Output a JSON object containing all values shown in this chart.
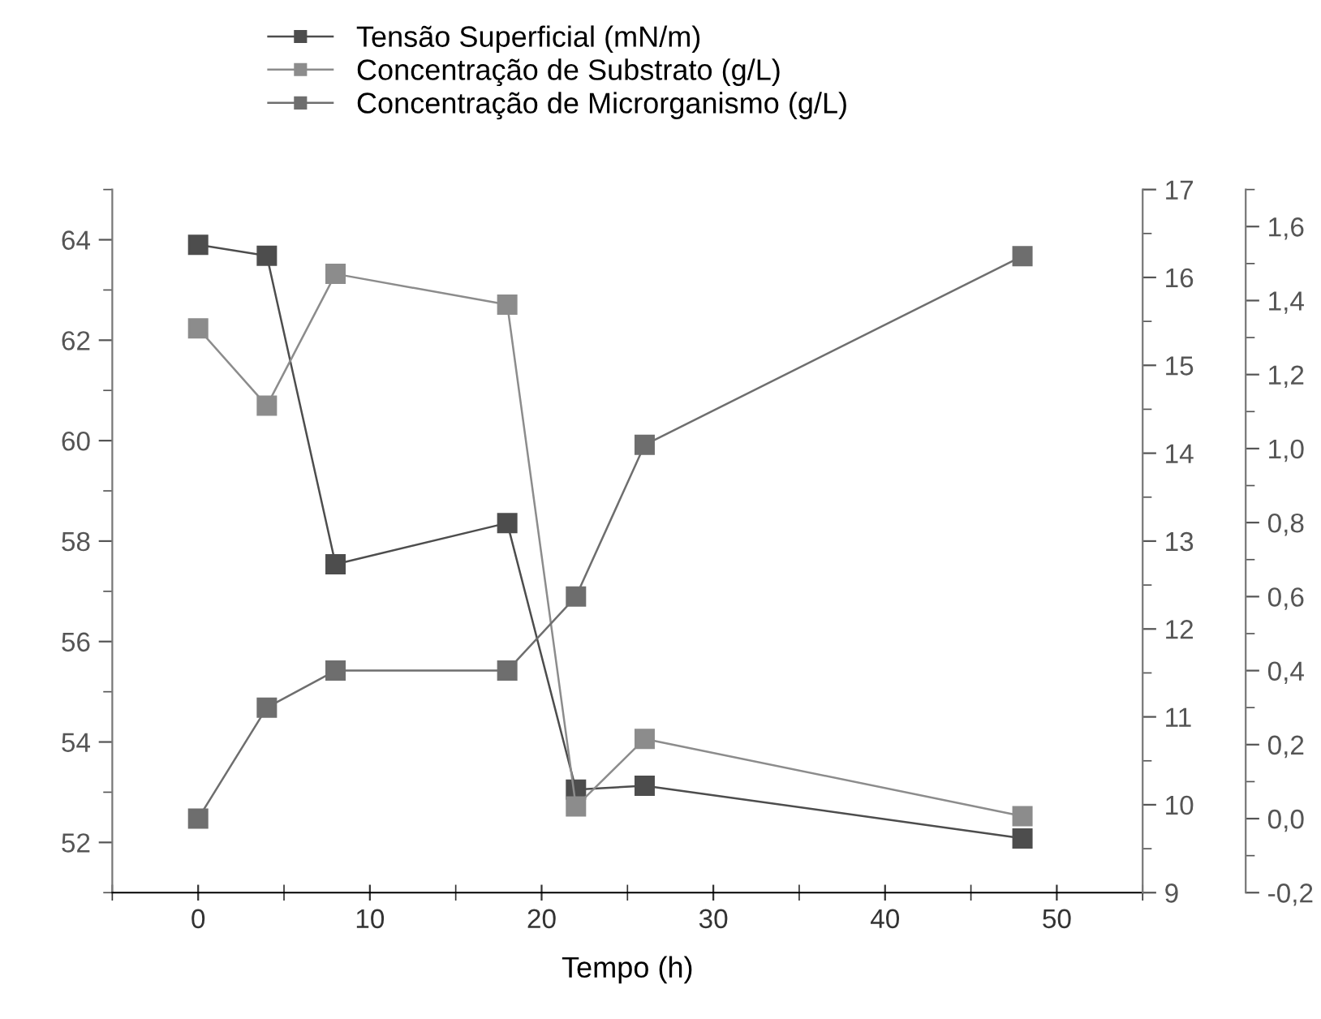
{
  "chart_data": {
    "type": "line",
    "xlabel": "Tempo (h)",
    "x": [
      0,
      4,
      8,
      18,
      22,
      26,
      48
    ],
    "series": [
      {
        "name": "Tensão Superficial (mN/m)",
        "color": "#4d4d4d",
        "values": [
          63.9,
          63.68,
          57.54,
          58.36,
          53.05,
          53.13,
          52.08
        ]
      },
      {
        "name": "Concentração de Substrato (g/L)",
        "color": "#8c8c8c",
        "axis": "y2",
        "values": [
          15.42,
          14.54,
          16.04,
          15.69,
          9.98,
          10.75,
          9.87
        ]
      },
      {
        "name": "Concentração de Microrganismo (g/L)",
        "color": "#6e6e6e",
        "axis": "y3",
        "values": [
          0.0,
          0.3,
          0.4,
          0.4,
          0.6,
          1.01,
          1.52
        ]
      }
    ],
    "xlim": [
      -5,
      55
    ],
    "xticks": [
      0,
      10,
      20,
      30,
      40,
      50
    ],
    "ylim": [
      51,
      65
    ],
    "yticks": [
      52,
      54,
      56,
      58,
      60,
      62,
      64
    ],
    "y2lim": [
      9,
      17
    ],
    "y2ticks": [
      9,
      10,
      11,
      12,
      13,
      14,
      15,
      16,
      17
    ],
    "y3lim": [
      -0.2,
      1.7
    ],
    "y3ticks": [
      {
        "value": -0.2,
        "label": "-0,2"
      },
      {
        "value": 0.0,
        "label": "0,0"
      },
      {
        "value": 0.2,
        "label": "0,2"
      },
      {
        "value": 0.4,
        "label": "0,4"
      },
      {
        "value": 0.6,
        "label": "0,6"
      },
      {
        "value": 0.8,
        "label": "0,8"
      },
      {
        "value": 1.0,
        "label": "1,0"
      },
      {
        "value": 1.2,
        "label": "1,2"
      },
      {
        "value": 1.4,
        "label": "1,4"
      },
      {
        "value": 1.6,
        "label": "1,6"
      }
    ],
    "marker": "square",
    "line_style": "solid",
    "grid": false,
    "legend": "top"
  }
}
